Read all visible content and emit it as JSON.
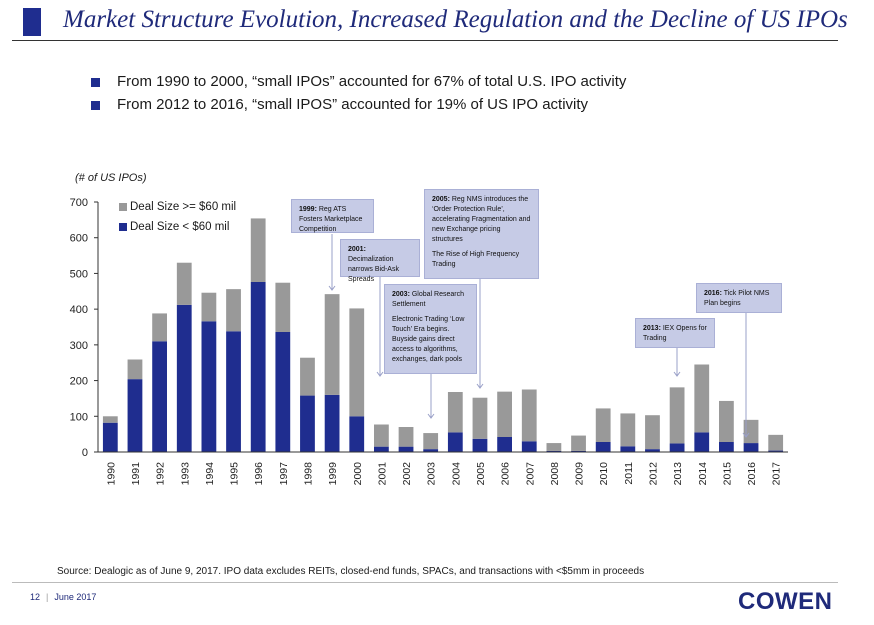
{
  "header": {
    "title": "Market Structure Evolution, Increased Regulation and the Decline of US IPOs"
  },
  "bullets": [
    "From 1990 to 2000, “small IPOs” accounted for 67% of total U.S. IPO activity",
    "From 2012 to 2016, “small IPOS” accounted for 19% of US IPO activity"
  ],
  "colors": {
    "large": "#999999",
    "small": "#1f2d8f",
    "brand": "#1f2a7a",
    "note_bg": "#c6cbe6"
  },
  "chart_data": {
    "type": "bar",
    "stacked": true,
    "unit_label": "(# of US IPOs)",
    "categories": [
      "1990",
      "1991",
      "1992",
      "1993",
      "1994",
      "1995",
      "1996",
      "1997",
      "1998",
      "1999",
      "2000",
      "2001",
      "2002",
      "2003",
      "2004",
      "2005",
      "2006",
      "2007",
      "2008",
      "2009",
      "2010",
      "2011",
      "2012",
      "2013",
      "2014",
      "2015",
      "2016",
      "2017"
    ],
    "series": [
      {
        "name": "Deal Size < $60 mil",
        "values": [
          82,
          204,
          310,
          412,
          366,
          338,
          476,
          336,
          158,
          160,
          100,
          15,
          15,
          8,
          55,
          37,
          42,
          30,
          3,
          3,
          28,
          16,
          8,
          24,
          55,
          28,
          25,
          4
        ]
      },
      {
        "name": "Deal Size >= $60 mil",
        "values": [
          18,
          55,
          78,
          118,
          80,
          118,
          178,
          138,
          106,
          282,
          302,
          62,
          55,
          45,
          113,
          115,
          127,
          145,
          22,
          43,
          94,
          92,
          95,
          157,
          190,
          115,
          65,
          44
        ]
      }
    ],
    "ylim": [
      0,
      700
    ],
    "yticks": [
      0,
      100,
      200,
      300,
      400,
      500,
      600,
      700
    ],
    "legend": [
      "Deal Size >= $60 mil",
      "Deal Size < $60 mil"
    ],
    "annotations": [
      {
        "year": "1999",
        "bold": "1999:",
        "text": "Reg ATS Fosters Marketplace Competition"
      },
      {
        "year": "2001",
        "bold": "2001:",
        "text": "Decimalization narrows Bid-Ask Spreads"
      },
      {
        "year": "2003",
        "bold": "2003:",
        "text": "Global Research Settlement",
        "extra": "Electronic Trading ‘Low Touch’ Era begins. Buyside gains direct access to algorithms, exchanges, dark pools"
      },
      {
        "year": "2005",
        "bold": "2005:",
        "text": "Reg NMS introduces the ‘Order Protection Rule’, accelerating Fragmentation and new Exchange pricing structures",
        "extra": "The Rise of High Frequency Trading"
      },
      {
        "year": "2013",
        "bold": "2013:",
        "text": "IEX Opens for Trading"
      },
      {
        "year": "2016",
        "bold": "2016:",
        "text": "Tick Pilot NMS Plan begins"
      }
    ]
  },
  "footer": {
    "source": "Source:  Dealogic as of June 9, 2017. IPO data excludes REITs, closed-end funds, SPACs, and transactions with <$5mm in proceeds",
    "page": "12",
    "date": "June 2017",
    "logo": "COWEN"
  }
}
